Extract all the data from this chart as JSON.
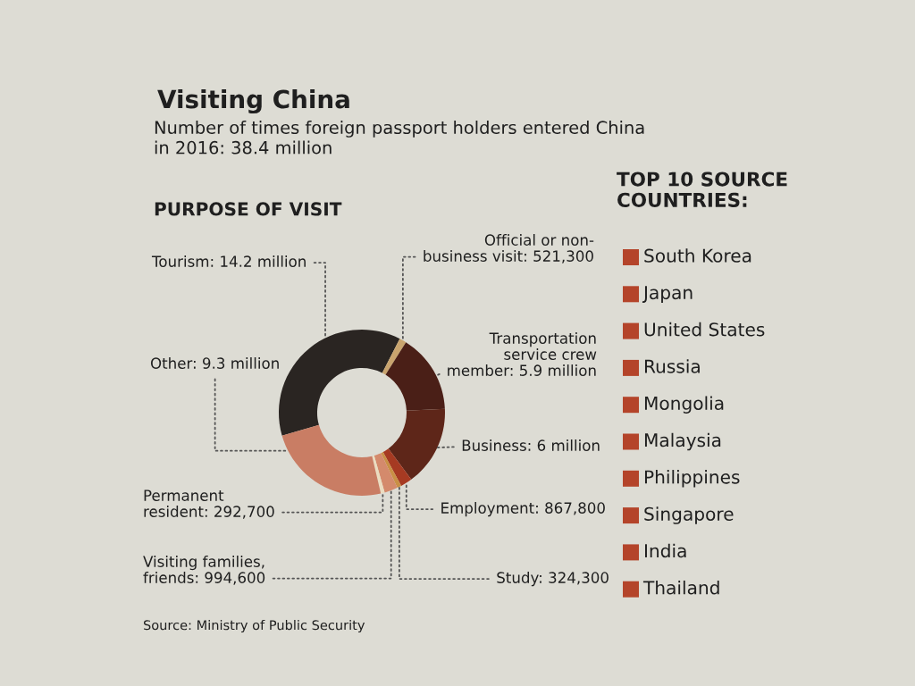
{
  "chart_data": [
    {
      "type": "donut",
      "title": "Visiting China",
      "subtitle": "Number of times foreign passport holders entered China\nin 2016: 38.4 million",
      "categories": [
        "Tourism",
        "Official or non-\nbusiness visit",
        "Transportation\nservice crew\nmember",
        "Business",
        "Employment",
        "Study",
        "Visiting families,\nfriends",
        "Permanent\nresident",
        "Other"
      ],
      "values": [
        14200000,
        521300,
        5900000,
        6000000,
        867800,
        324300,
        994600,
        292700,
        9300000
      ],
      "value_labels": [
        "14.2 million",
        "521,300",
        "5.9 million",
        "6 million",
        "867,800",
        "324,300",
        "994,600",
        "292,700",
        "9.3 million"
      ],
      "colors": [
        "#2a2522",
        "#c9a46e",
        "#4a1f17",
        "#5e2619",
        "#a63a22",
        "#c98f45",
        "#d48a6c",
        "#ebdcc0",
        "#c97d64"
      ],
      "annotations": [
        "PURPOSE OF VISIT",
        "Source: Ministry of Public Security"
      ]
    },
    {
      "type": "other",
      "title": "TOP 10 SOURCE\nCOUNTRIES:",
      "categories": [
        "South Korea",
        "Japan",
        "United States",
        "Russia",
        "Mongolia",
        "Malaysia",
        "Philippines",
        "Singapore",
        "India",
        "Thailand"
      ],
      "color": "#b4442a"
    }
  ]
}
